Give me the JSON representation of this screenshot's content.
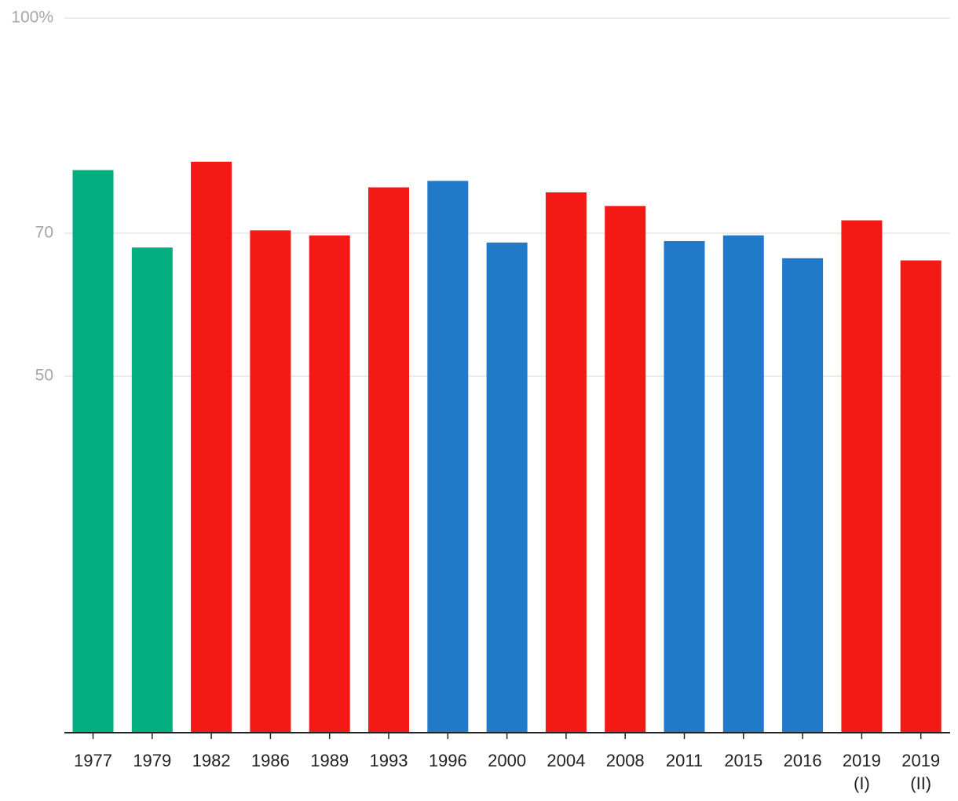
{
  "chart_data": {
    "type": "bar",
    "categories": [
      [
        "1977"
      ],
      [
        "1979"
      ],
      [
        "1982"
      ],
      [
        "1986"
      ],
      [
        "1989"
      ],
      [
        "1993"
      ],
      [
        "1996"
      ],
      [
        "2000"
      ],
      [
        "2004"
      ],
      [
        "2008"
      ],
      [
        "2011"
      ],
      [
        "2015"
      ],
      [
        "2016"
      ],
      [
        "2019",
        "(I)"
      ],
      [
        "2019",
        "(II)"
      ]
    ],
    "values": [
      78.8,
      68.0,
      79.97,
      70.4,
      69.7,
      76.4,
      77.3,
      68.7,
      75.7,
      73.8,
      68.9,
      69.7,
      66.5,
      71.8,
      66.2
    ],
    "bar_colors": [
      "#00ae7f",
      "#00ae7f",
      "#f31a15",
      "#f31a15",
      "#f31a15",
      "#f31a15",
      "#2179c9",
      "#2179c9",
      "#f31a15",
      "#f31a15",
      "#2179c9",
      "#2179c9",
      "#2179c9",
      "#f31a15",
      "#f31a15"
    ],
    "y_ticks": [
      {
        "value": 50,
        "label": "50"
      },
      {
        "value": 70,
        "label": "70"
      },
      {
        "value": 100,
        "label": "100%"
      }
    ],
    "ylim": [
      0,
      100
    ],
    "grid": true,
    "legend": "none",
    "title": "",
    "xlabel": "",
    "ylabel": ""
  }
}
